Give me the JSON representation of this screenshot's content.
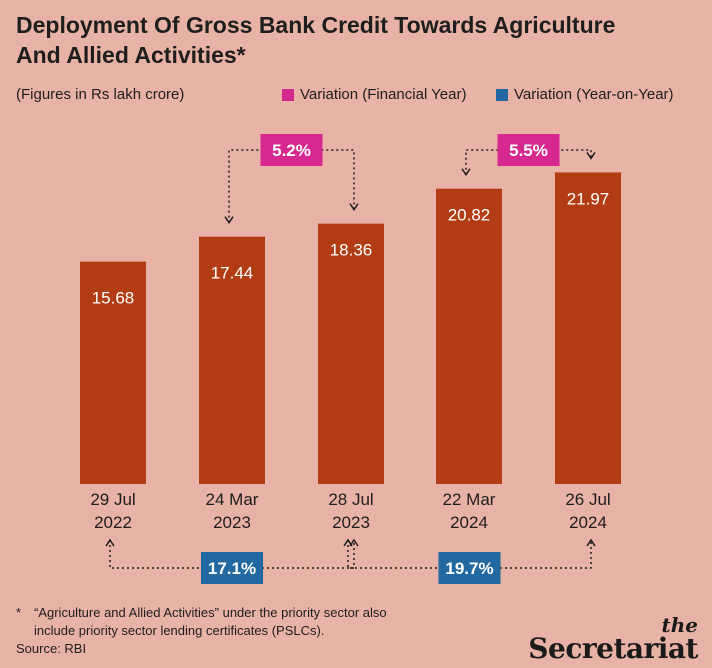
{
  "title": "Deployment Of Gross Bank Credit Towards Agriculture And Allied Activities*",
  "subtitle": "(Figures in Rs lakh crore)",
  "legend": [
    {
      "label": "Variation (Financial Year)",
      "color": "#d6288f"
    },
    {
      "label": "Variation (Year-on-Year)",
      "color": "#2169a0"
    }
  ],
  "colors": {
    "background": "#e8b2a6",
    "bar": "#b23c14",
    "bar_label": "#ffffff",
    "financial_year_badge": "#d6288f",
    "year_on_year_badge": "#2169a0"
  },
  "chart_data": {
    "type": "bar",
    "categories": [
      [
        "29 Jul",
        "2022"
      ],
      [
        "24 Mar",
        "2023"
      ],
      [
        "28 Jul",
        "2023"
      ],
      [
        "22 Mar",
        "2024"
      ],
      [
        "26 Jul",
        "2024"
      ]
    ],
    "values": [
      15.68,
      17.44,
      18.36,
      20.82,
      21.97
    ],
    "value_labels": [
      "15.68",
      "17.44",
      "18.36",
      "20.82",
      "21.97"
    ],
    "ylim": [
      0,
      22
    ],
    "grid": false,
    "legend_position": "top-right",
    "annotations": [
      {
        "kind": "financial_year",
        "text": "5.2%",
        "from": 1,
        "to": 2,
        "placement": "above"
      },
      {
        "kind": "financial_year",
        "text": "5.5%",
        "from": 3,
        "to": 4,
        "placement": "above"
      },
      {
        "kind": "year_on_year",
        "text": "17.1%",
        "from": 0,
        "to": 2,
        "placement": "below"
      },
      {
        "kind": "year_on_year",
        "text": "19.7%",
        "from": 2,
        "to": 4,
        "placement": "below"
      }
    ]
  },
  "footnote": {
    "mark": "*",
    "line1": "“Agriculture and Allied Activities” under the priority sector also",
    "line2": "include priority sector lending certificates (PSLCs).",
    "source": "Source: RBI"
  },
  "logo": {
    "the": "the",
    "name": "Secretariat"
  }
}
